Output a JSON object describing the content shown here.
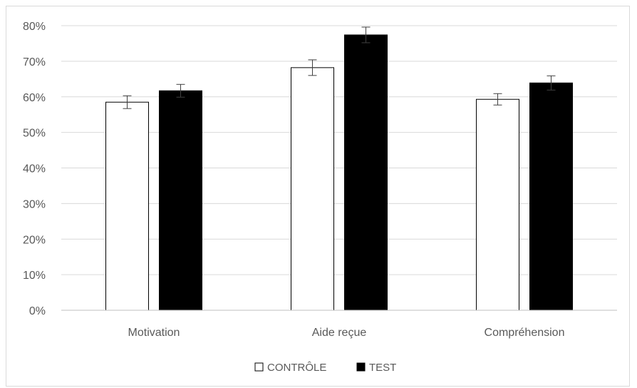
{
  "chart_data": {
    "type": "bar",
    "categories": [
      "Motivation",
      "Aide reçue",
      "Compréhension"
    ],
    "series": [
      {
        "name": "CONTRÔLE",
        "values": [
          58.5,
          68.2,
          59.3
        ],
        "errors": [
          1.8,
          2.2,
          1.6
        ],
        "fill": "#ffffff",
        "stroke": "#000000"
      },
      {
        "name": "TEST",
        "values": [
          61.7,
          77.4,
          63.9
        ],
        "errors": [
          1.8,
          2.2,
          2.0
        ],
        "fill": "#000000",
        "stroke": "#000000"
      }
    ],
    "y_ticks": [
      "0%",
      "10%",
      "20%",
      "30%",
      "40%",
      "50%",
      "60%",
      "70%",
      "80%"
    ],
    "ylim": [
      0,
      80
    ],
    "y_unit": "%",
    "grid": true,
    "legend_position": "bottom",
    "colors": {
      "grid": "#d9d9d9",
      "axis": "#bfbfbf",
      "text": "#595959",
      "error_bar": "#404040"
    }
  }
}
